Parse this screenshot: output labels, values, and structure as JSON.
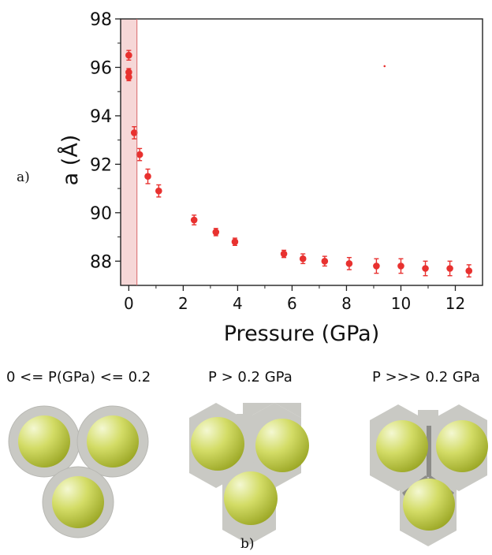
{
  "panel_a_label": "a)",
  "panel_b_label": "b)",
  "chart_data": {
    "type": "scatter",
    "title": "",
    "xlabel": "Pressure (GPa)",
    "ylabel": "a (Å)",
    "xlim": [
      -0.3,
      13.0
    ],
    "ylim": [
      87.0,
      98.0
    ],
    "xticks": [
      "0",
      "2",
      "4",
      "6",
      "8",
      "10",
      "12"
    ],
    "xtick_values": [
      0,
      2,
      4,
      6,
      8,
      10,
      12
    ],
    "yticks": [
      "88",
      "90",
      "92",
      "94",
      "96",
      "98"
    ],
    "ytick_values": [
      88,
      90,
      92,
      94,
      96,
      98
    ],
    "highlight_band": [
      0,
      0.3
    ],
    "marker_color": "#e8312f",
    "band_color": "#f6d7d7",
    "band_edge_color": "#d9666a",
    "grid": false,
    "series": [
      {
        "x": [
          0.0,
          0.0,
          0.0,
          0.2,
          0.4,
          0.7,
          1.1,
          2.4,
          3.2,
          3.9,
          5.7,
          6.4,
          7.2,
          8.1,
          9.1,
          10.0,
          10.9,
          11.8,
          12.5
        ],
        "y": [
          96.5,
          95.8,
          95.6,
          93.3,
          92.4,
          91.5,
          90.9,
          89.7,
          89.2,
          88.8,
          88.3,
          88.1,
          88.0,
          87.9,
          87.8,
          87.8,
          87.7,
          87.7,
          87.6
        ],
        "yerr": [
          0.2,
          0.15,
          0.15,
          0.25,
          0.25,
          0.3,
          0.25,
          0.2,
          0.15,
          0.15,
          0.15,
          0.2,
          0.2,
          0.25,
          0.3,
          0.3,
          0.3,
          0.3,
          0.25
        ]
      }
    ],
    "stray_point": {
      "x": 9.4,
      "y": 96.05
    }
  },
  "schematics": [
    {
      "caption": "0 <= P(GPa) <= 0.2",
      "shell": "circle"
    },
    {
      "caption": "P > 0.2 GPa",
      "shell": "hexagon"
    },
    {
      "caption": "P >>> 0.2 GPa",
      "shell": "hexagon-merged"
    }
  ],
  "colors": {
    "shell": "#c9c9c4",
    "shell_edge": "#bdbdb8",
    "core_light": "#f1f6c4",
    "core_mid": "#c8d24e",
    "core_dark": "#8d9a1d"
  }
}
